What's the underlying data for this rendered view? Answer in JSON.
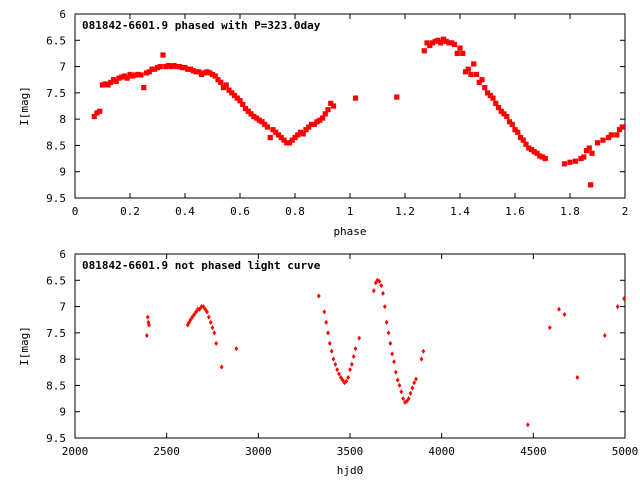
{
  "chart_data": [
    {
      "type": "scatter",
      "title": "081842-6601.9 phased with P=323.0day",
      "xlabel": "phase",
      "ylabel": "I[mag]",
      "xlim": [
        0,
        2
      ],
      "ylim": [
        6,
        9.5
      ],
      "y_inverted": true,
      "x_ticks": [
        "0",
        "0.2",
        "0.4",
        "0.6",
        "0.8",
        "1",
        "1.2",
        "1.4",
        "1.6",
        "1.8",
        "2"
      ],
      "y_ticks": [
        "6",
        "6.5",
        "7",
        "7.5",
        "8",
        "8.5",
        "9",
        "9.5"
      ],
      "marker_color": "#ff0000",
      "series": [
        {
          "points": [
            [
              0.07,
              7.95
            ],
            [
              0.08,
              7.88
            ],
            [
              0.09,
              7.85
            ],
            [
              0.1,
              7.35
            ],
            [
              0.11,
              7.33
            ],
            [
              0.12,
              7.35
            ],
            [
              0.13,
              7.3
            ],
            [
              0.14,
              7.25
            ],
            [
              0.15,
              7.28
            ],
            [
              0.16,
              7.22
            ],
            [
              0.17,
              7.2
            ],
            [
              0.18,
              7.18
            ],
            [
              0.19,
              7.22
            ],
            [
              0.2,
              7.15
            ],
            [
              0.21,
              7.18
            ],
            [
              0.22,
              7.16
            ],
            [
              0.23,
              7.15
            ],
            [
              0.24,
              7.16
            ],
            [
              0.25,
              7.4
            ],
            [
              0.26,
              7.12
            ],
            [
              0.27,
              7.1
            ],
            [
              0.28,
              7.05
            ],
            [
              0.29,
              7.05
            ],
            [
              0.3,
              7.02
            ],
            [
              0.31,
              7.0
            ],
            [
              0.32,
              6.78
            ],
            [
              0.33,
              7.0
            ],
            [
              0.34,
              6.98
            ],
            [
              0.35,
              7.0
            ],
            [
              0.36,
              6.98
            ],
            [
              0.37,
              7.0
            ],
            [
              0.38,
              7.0
            ],
            [
              0.39,
              7.02
            ],
            [
              0.4,
              7.02
            ],
            [
              0.41,
              7.05
            ],
            [
              0.42,
              7.05
            ],
            [
              0.43,
              7.08
            ],
            [
              0.44,
              7.1
            ],
            [
              0.45,
              7.1
            ],
            [
              0.46,
              7.15
            ],
            [
              0.47,
              7.12
            ],
            [
              0.48,
              7.1
            ],
            [
              0.49,
              7.12
            ],
            [
              0.5,
              7.15
            ],
            [
              0.51,
              7.18
            ],
            [
              0.52,
              7.25
            ],
            [
              0.53,
              7.3
            ],
            [
              0.54,
              7.4
            ],
            [
              0.55,
              7.35
            ],
            [
              0.56,
              7.45
            ],
            [
              0.57,
              7.5
            ],
            [
              0.58,
              7.55
            ],
            [
              0.59,
              7.6
            ],
            [
              0.6,
              7.65
            ],
            [
              0.61,
              7.72
            ],
            [
              0.62,
              7.8
            ],
            [
              0.63,
              7.85
            ],
            [
              0.64,
              7.9
            ],
            [
              0.65,
              7.95
            ],
            [
              0.66,
              7.98
            ],
            [
              0.67,
              8.02
            ],
            [
              0.68,
              8.05
            ],
            [
              0.69,
              8.1
            ],
            [
              0.7,
              8.15
            ],
            [
              0.71,
              8.35
            ],
            [
              0.72,
              8.2
            ],
            [
              0.73,
              8.25
            ],
            [
              0.74,
              8.3
            ],
            [
              0.75,
              8.35
            ],
            [
              0.76,
              8.4
            ],
            [
              0.77,
              8.45
            ],
            [
              0.78,
              8.45
            ],
            [
              0.79,
              8.4
            ],
            [
              0.8,
              8.35
            ],
            [
              0.81,
              8.3
            ],
            [
              0.82,
              8.25
            ],
            [
              0.83,
              8.28
            ],
            [
              0.84,
              8.2
            ],
            [
              0.85,
              8.15
            ],
            [
              0.86,
              8.1
            ],
            [
              0.87,
              8.1
            ],
            [
              0.88,
              8.05
            ],
            [
              0.89,
              8.02
            ],
            [
              0.9,
              7.98
            ],
            [
              0.91,
              7.9
            ],
            [
              0.92,
              7.82
            ],
            [
              0.93,
              7.7
            ],
            [
              0.94,
              7.75
            ],
            [
              1.02,
              7.6
            ],
            [
              1.17,
              7.58
            ],
            [
              1.27,
              6.7
            ],
            [
              1.28,
              6.55
            ],
            [
              1.29,
              6.6
            ],
            [
              1.3,
              6.55
            ],
            [
              1.31,
              6.52
            ],
            [
              1.32,
              6.5
            ],
            [
              1.33,
              6.55
            ],
            [
              1.34,
              6.48
            ],
            [
              1.35,
              6.52
            ],
            [
              1.36,
              6.55
            ],
            [
              1.37,
              6.55
            ],
            [
              1.38,
              6.58
            ],
            [
              1.39,
              6.75
            ],
            [
              1.4,
              6.65
            ],
            [
              1.41,
              6.75
            ],
            [
              1.42,
              7.1
            ],
            [
              1.43,
              7.05
            ],
            [
              1.44,
              7.15
            ],
            [
              1.45,
              6.95
            ],
            [
              1.46,
              7.15
            ],
            [
              1.47,
              7.3
            ],
            [
              1.48,
              7.25
            ],
            [
              1.49,
              7.4
            ],
            [
              1.5,
              7.5
            ],
            [
              1.51,
              7.55
            ],
            [
              1.52,
              7.6
            ],
            [
              1.53,
              7.7
            ],
            [
              1.54,
              7.78
            ],
            [
              1.55,
              7.85
            ],
            [
              1.56,
              7.9
            ],
            [
              1.57,
              7.95
            ],
            [
              1.58,
              8.05
            ],
            [
              1.59,
              8.1
            ],
            [
              1.6,
              8.2
            ],
            [
              1.61,
              8.25
            ],
            [
              1.62,
              8.35
            ],
            [
              1.63,
              8.4
            ],
            [
              1.64,
              8.48
            ],
            [
              1.65,
              8.55
            ],
            [
              1.66,
              8.58
            ],
            [
              1.67,
              8.62
            ],
            [
              1.68,
              8.65
            ],
            [
              1.69,
              8.7
            ],
            [
              1.7,
              8.72
            ],
            [
              1.71,
              8.75
            ],
            [
              1.78,
              8.85
            ],
            [
              1.8,
              8.82
            ],
            [
              1.82,
              8.8
            ],
            [
              1.84,
              8.75
            ],
            [
              1.85,
              8.72
            ],
            [
              1.86,
              8.6
            ],
            [
              1.87,
              8.55
            ],
            [
              1.875,
              9.25
            ],
            [
              1.88,
              8.65
            ],
            [
              1.9,
              8.45
            ],
            [
              1.92,
              8.4
            ],
            [
              1.94,
              8.35
            ],
            [
              1.95,
              8.3
            ],
            [
              1.97,
              8.3
            ],
            [
              1.98,
              8.2
            ],
            [
              1.99,
              8.15
            ]
          ]
        }
      ]
    },
    {
      "type": "scatter",
      "title": "081842-6601.9 not phased light curve",
      "xlabel": "hjd0",
      "ylabel": "I[mag]",
      "xlim": [
        2000,
        5000
      ],
      "ylim": [
        6,
        9.5
      ],
      "y_inverted": true,
      "x_ticks": [
        "2000",
        "2500",
        "3000",
        "3500",
        "4000",
        "4500",
        "5000"
      ],
      "y_ticks": [
        "6",
        "6.5",
        "7",
        "7.5",
        "8",
        "8.5",
        "9",
        "9.5"
      ],
      "marker_color": "#ff0000",
      "series": [
        {
          "points": [
            [
              2392,
              7.55
            ],
            [
              2397,
              7.2
            ],
            [
              2400,
              7.3
            ],
            [
              2404,
              7.35
            ],
            [
              2615,
              7.35
            ],
            [
              2622,
              7.3
            ],
            [
              2630,
              7.25
            ],
            [
              2640,
              7.2
            ],
            [
              2650,
              7.15
            ],
            [
              2660,
              7.1
            ],
            [
              2670,
              7.05
            ],
            [
              2680,
              7.05
            ],
            [
              2690,
              7.0
            ],
            [
              2700,
              7.0
            ],
            [
              2710,
              7.05
            ],
            [
              2720,
              7.1
            ],
            [
              2730,
              7.2
            ],
            [
              2740,
              7.3
            ],
            [
              2750,
              7.4
            ],
            [
              2760,
              7.5
            ],
            [
              2770,
              7.7
            ],
            [
              2800,
              8.15
            ],
            [
              2880,
              7.8
            ],
            [
              3330,
              6.8
            ],
            [
              3360,
              7.1
            ],
            [
              3370,
              7.3
            ],
            [
              3380,
              7.5
            ],
            [
              3390,
              7.7
            ],
            [
              3400,
              7.85
            ],
            [
              3410,
              8.0
            ],
            [
              3420,
              8.1
            ],
            [
              3430,
              8.2
            ],
            [
              3440,
              8.28
            ],
            [
              3450,
              8.35
            ],
            [
              3460,
              8.4
            ],
            [
              3470,
              8.45
            ],
            [
              3480,
              8.42
            ],
            [
              3490,
              8.35
            ],
            [
              3500,
              8.2
            ],
            [
              3510,
              8.1
            ],
            [
              3520,
              7.95
            ],
            [
              3530,
              7.8
            ],
            [
              3550,
              7.6
            ],
            [
              3630,
              6.7
            ],
            [
              3640,
              6.55
            ],
            [
              3650,
              6.5
            ],
            [
              3660,
              6.52
            ],
            [
              3670,
              6.6
            ],
            [
              3680,
              6.75
            ],
            [
              3690,
              7.0
            ],
            [
              3700,
              7.3
            ],
            [
              3710,
              7.5
            ],
            [
              3720,
              7.7
            ],
            [
              3730,
              7.9
            ],
            [
              3740,
              8.05
            ],
            [
              3750,
              8.25
            ],
            [
              3760,
              8.4
            ],
            [
              3770,
              8.5
            ],
            [
              3780,
              8.62
            ],
            [
              3790,
              8.75
            ],
            [
              3800,
              8.82
            ],
            [
              3810,
              8.8
            ],
            [
              3820,
              8.75
            ],
            [
              3830,
              8.65
            ],
            [
              3840,
              8.55
            ],
            [
              3850,
              8.45
            ],
            [
              3860,
              8.38
            ],
            [
              3890,
              8.0
            ],
            [
              3900,
              7.85
            ],
            [
              4470,
              9.25
            ],
            [
              4590,
              7.4
            ],
            [
              4640,
              7.05
            ],
            [
              4670,
              7.15
            ],
            [
              4740,
              8.35
            ],
            [
              4890,
              7.55
            ],
            [
              4960,
              7.0
            ],
            [
              4995,
              6.85
            ]
          ]
        }
      ]
    }
  ]
}
